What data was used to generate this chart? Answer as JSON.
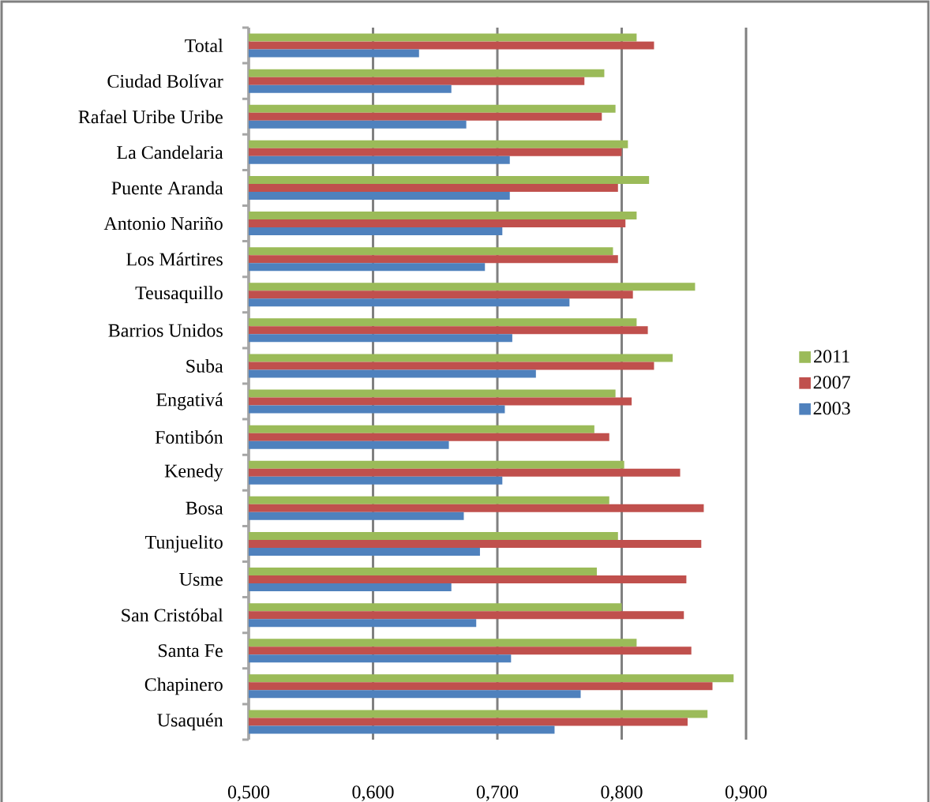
{
  "chart_data": {
    "type": "bar",
    "orientation": "horizontal",
    "categories": [
      "Total",
      "Ciudad Bolívar",
      "Rafael Uribe Uribe",
      "La Candelaria",
      "Puente Aranda",
      "Antonio Nariño",
      "Los Mártires",
      "Teusaquillo",
      "Barrios Unidos",
      "Suba",
      "Engativá",
      "Fontibón",
      "Kenedy",
      "Bosa",
      "Tunjuelito",
      "Usme",
      "San Cristóbal",
      "Santa Fe",
      "Chapinero",
      "Usaquén"
    ],
    "series": [
      {
        "name": "2011",
        "color": "#9bbb59",
        "values": [
          0.812,
          0.786,
          0.795,
          0.805,
          0.822,
          0.812,
          0.793,
          0.859,
          0.812,
          0.841,
          0.795,
          0.778,
          0.802,
          0.79,
          0.797,
          0.78,
          0.8,
          0.812,
          0.89,
          0.869
        ]
      },
      {
        "name": "2007",
        "color": "#c0504d",
        "values": [
          0.826,
          0.77,
          0.784,
          0.8,
          0.797,
          0.803,
          0.797,
          0.809,
          0.821,
          0.826,
          0.808,
          0.79,
          0.847,
          0.866,
          0.864,
          0.852,
          0.85,
          0.856,
          0.873,
          0.853
        ]
      },
      {
        "name": "2003",
        "color": "#4f81bd",
        "values": [
          0.637,
          0.663,
          0.675,
          0.71,
          0.71,
          0.704,
          0.69,
          0.758,
          0.712,
          0.731,
          0.706,
          0.661,
          0.704,
          0.673,
          0.686,
          0.663,
          0.683,
          0.711,
          0.767,
          0.746
        ]
      }
    ],
    "xlim": [
      0.5,
      0.9
    ],
    "xticks": [
      {
        "value": 0.5,
        "label": "0,500"
      },
      {
        "value": 0.6,
        "label": "0,600"
      },
      {
        "value": 0.7,
        "label": "0,700"
      },
      {
        "value": 0.8,
        "label": "0,800"
      },
      {
        "value": 0.9,
        "label": "0,900"
      }
    ],
    "grid": "x",
    "legend": "right"
  }
}
